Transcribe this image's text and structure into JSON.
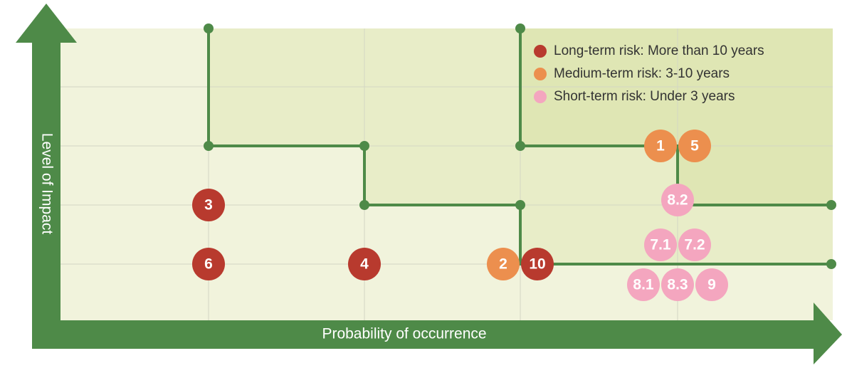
{
  "axes": {
    "y_label": "Level of Impact",
    "x_label": "Probability of occurrence"
  },
  "legend": [
    {
      "label": "Long-term risk: More than 10 years",
      "color": "#b83a2e"
    },
    {
      "label": "Medium-term risk: 3-10 years",
      "color": "#ec8f4e"
    },
    {
      "label": "Short-term risk: Under 3 years",
      "color": "#f4a6bf"
    }
  ],
  "risks": [
    {
      "label": "3",
      "term": 0
    },
    {
      "label": "6",
      "term": 0
    },
    {
      "label": "4",
      "term": 0
    },
    {
      "label": "2",
      "term": 1
    },
    {
      "label": "10",
      "term": 0
    },
    {
      "label": "1",
      "term": 1
    },
    {
      "label": "5",
      "term": 1
    },
    {
      "label": "8.2",
      "term": 2
    },
    {
      "label": "7.1",
      "term": 2
    },
    {
      "label": "7.2",
      "term": 2
    },
    {
      "label": "8.1",
      "term": 2
    },
    {
      "label": "8.3",
      "term": 2
    },
    {
      "label": "9",
      "term": 2
    }
  ]
}
